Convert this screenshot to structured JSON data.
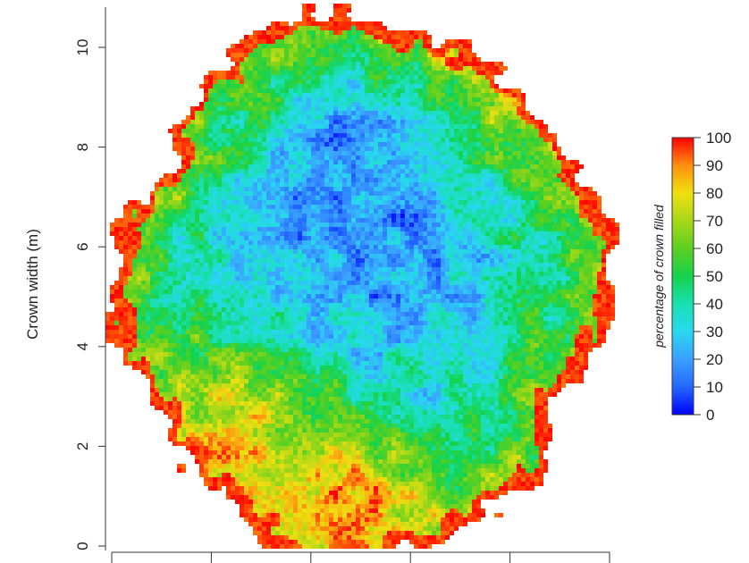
{
  "chart_data": {
    "type": "heatmap",
    "title": "",
    "xlabel": "",
    "ylabel": "Crown width (m)",
    "ylim": [
      0,
      11
    ],
    "yticks": [
      "0",
      "2",
      "4",
      "6",
      "8",
      "10"
    ],
    "y_tick_values": [
      0,
      2,
      4,
      6,
      8,
      10
    ],
    "xticks_count": 6,
    "grid": false,
    "value_range": [
      0,
      100
    ],
    "colorbar": {
      "label": "percentage of crown filled",
      "placement": "right",
      "ticks": [
        "0",
        "10",
        "20",
        "30",
        "40",
        "50",
        "60",
        "70",
        "80",
        "90",
        "100"
      ],
      "tick_values": [
        0,
        10,
        20,
        30,
        40,
        50,
        60,
        70,
        80,
        90,
        100
      ],
      "colormap": [
        "#0000ff",
        "#2468ff",
        "#3aa0ff",
        "#28d8f0",
        "#18e0b0",
        "#14d24c",
        "#5cd020",
        "#a8d818",
        "#f0e010",
        "#ff9010",
        "#ff0000"
      ]
    },
    "description_of_field": "Irregular roughly circular crown, mostly 15-40% (blue-cyan) in the interior, rising to 50-80% (green-yellow) toward the edges, with 90-100% (red) cells along the outer boundary; highest values at lower-left and bottom."
  }
}
